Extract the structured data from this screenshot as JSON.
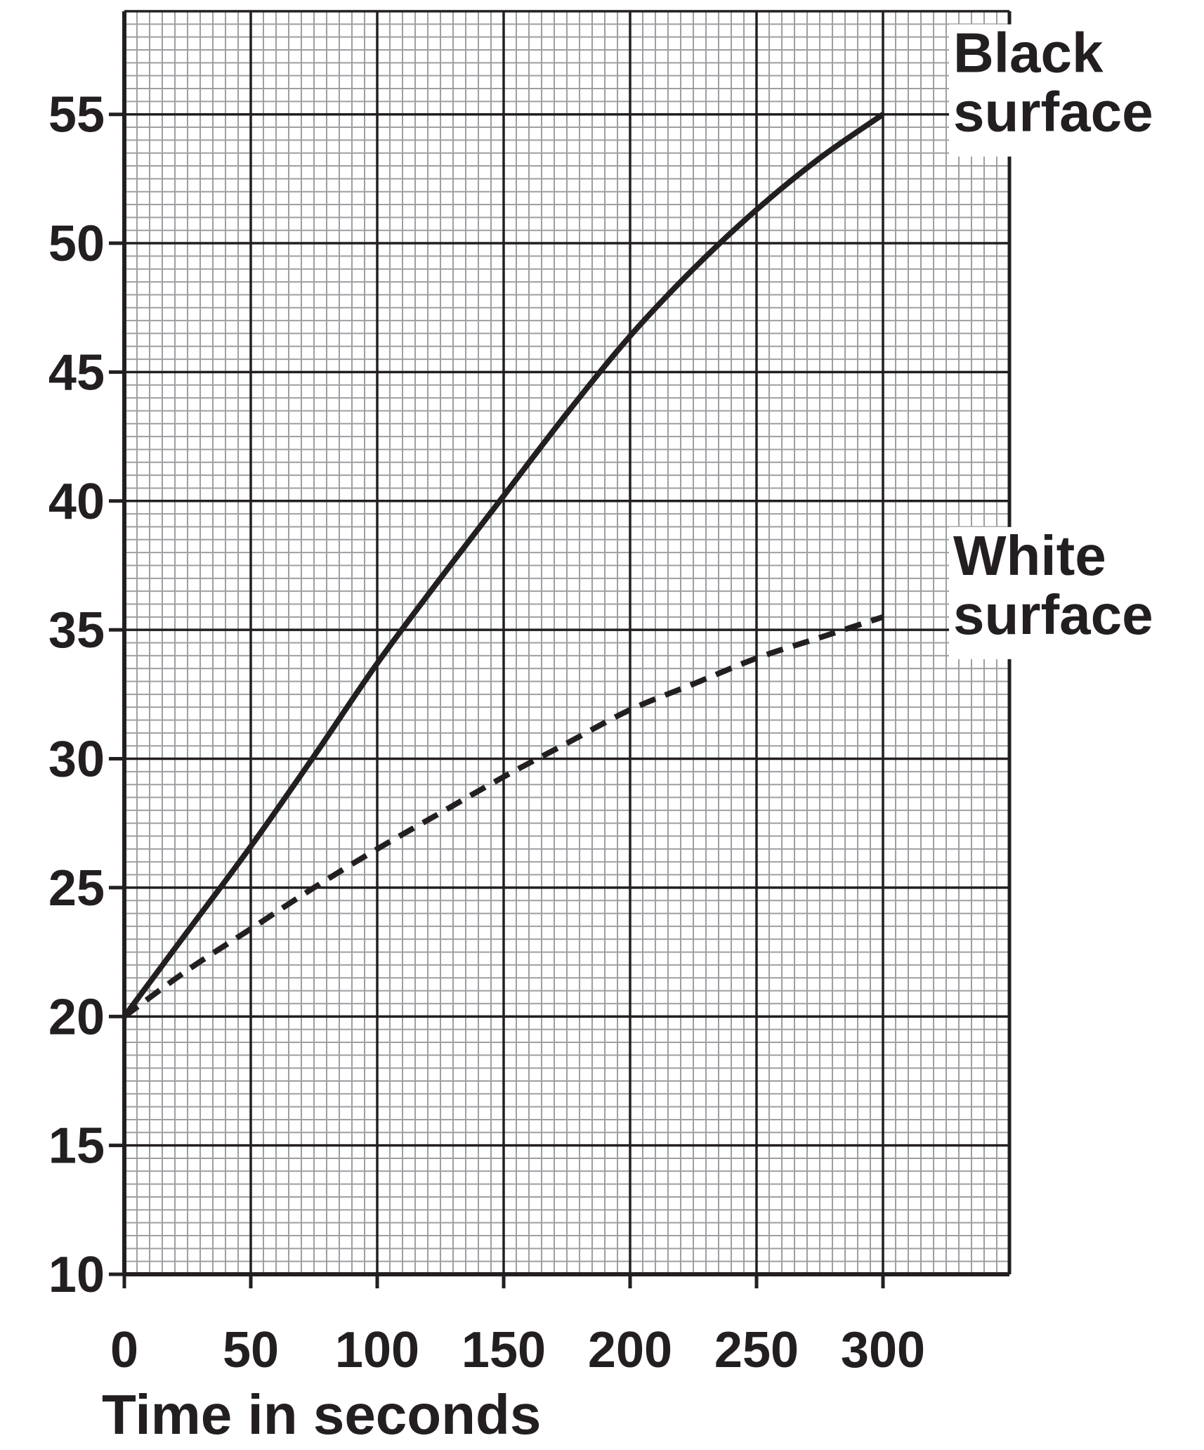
{
  "chart_data": {
    "type": "line",
    "title": "",
    "xlabel": "Time in seconds",
    "ylabel": "",
    "xlim": [
      0,
      350
    ],
    "ylim": [
      10,
      59
    ],
    "x_ticks": [
      0,
      50,
      100,
      150,
      200,
      250,
      300
    ],
    "y_ticks": [
      10,
      15,
      20,
      25,
      30,
      35,
      40,
      45,
      50,
      55
    ],
    "grid": true,
    "series": [
      {
        "name": "Black surface",
        "label_lines": [
          "Black",
          "surface"
        ],
        "style": "solid",
        "x": [
          0,
          25,
          50,
          75,
          100,
          125,
          150,
          175,
          200,
          225,
          250,
          275,
          300
        ],
        "y": [
          20,
          23.3,
          26.6,
          30.1,
          33.7,
          37.0,
          40.2,
          43.4,
          46.4,
          49.0,
          51.3,
          53.3,
          55
        ]
      },
      {
        "name": "White surface",
        "label_lines": [
          "White",
          "surface"
        ],
        "style": "dashed",
        "x": [
          0,
          25,
          50,
          75,
          100,
          125,
          150,
          175,
          200,
          225,
          250,
          275,
          300
        ],
        "y": [
          20,
          21.8,
          23.4,
          25.0,
          26.5,
          27.9,
          29.3,
          30.6,
          31.9,
          32.9,
          33.9,
          34.7,
          35.5
        ]
      }
    ],
    "colors": {
      "line": "#231f20",
      "grid_minor": "#9d9fa2",
      "grid_major": "#231f20"
    }
  }
}
